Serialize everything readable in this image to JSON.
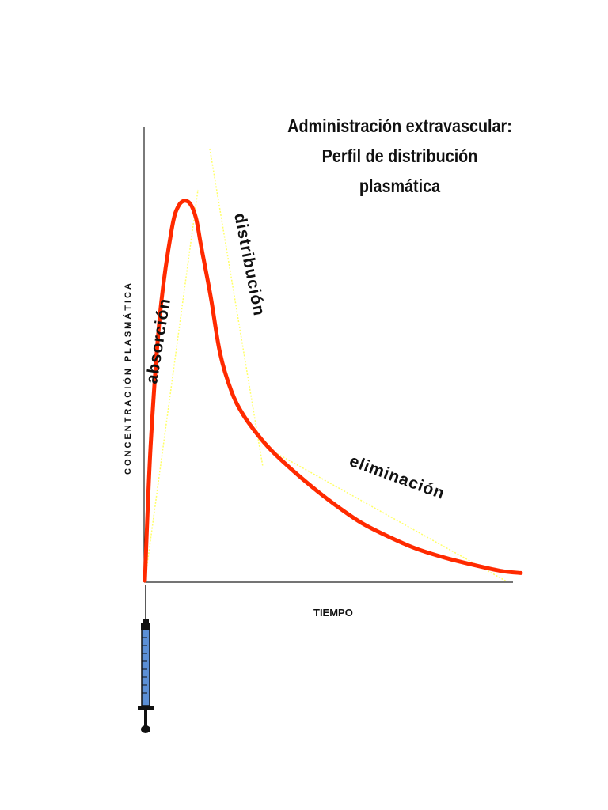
{
  "chart_data": {
    "type": "line",
    "title": "Administración extravascular:",
    "subtitle": "Perfil de distribución plasmática",
    "xlabel": "TIEMPO",
    "ylabel": "CONCENTRACIÓN  PLASMÁTICA",
    "annotations": [
      "absorción",
      "distribución",
      "eliminación"
    ],
    "series": [
      {
        "x": [
          0,
          0.015,
          0.04,
          0.07,
          0.09,
          0.115,
          0.135,
          0.15,
          0.175,
          0.2,
          0.23,
          0.26,
          0.3,
          0.34,
          0.4,
          0.46,
          0.52,
          0.58,
          0.65,
          0.72,
          0.8,
          0.88,
          0.95,
          1.0
        ],
        "values": [
          0,
          0.35,
          0.7,
          0.92,
          0.99,
          1.0,
          0.96,
          0.88,
          0.75,
          0.6,
          0.5,
          0.44,
          0.385,
          0.34,
          0.285,
          0.235,
          0.19,
          0.15,
          0.115,
          0.085,
          0.06,
          0.04,
          0.025,
          0.02
        ],
        "color": "#ff2a00"
      }
    ],
    "xlim": [
      0,
      1
    ],
    "ylim": [
      0,
      1.3
    ],
    "grid": false,
    "tangent_color": "#ffff66"
  },
  "icons": {
    "syringe": "syringe-icon"
  }
}
